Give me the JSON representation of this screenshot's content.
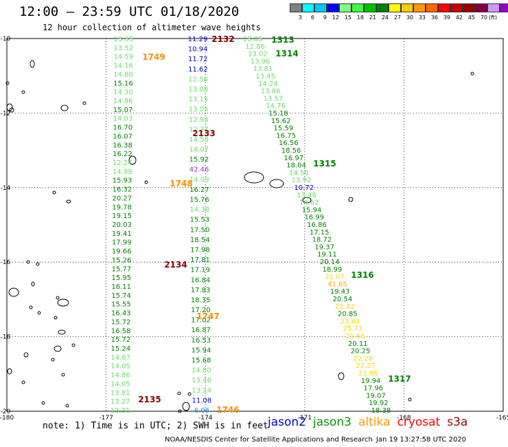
{
  "header": {
    "title": "12:00 – 23:59 UTC 01/18/2020",
    "subtitle": "12 hour collection of altimeter wave heights"
  },
  "legend": {
    "colors": [
      "#808080",
      "#00ffff",
      "#00c8ff",
      "#0000ff",
      "#80ff80",
      "#40ff40",
      "#00c000",
      "#008000",
      "#ffff00",
      "#ffcc00",
      "#ff9900",
      "#ff6600",
      "#ff0000",
      "#cc0000",
      "#990000",
      "#800040",
      "#cc99ff",
      "#9900cc",
      "#000000"
    ],
    "labels": [
      "3",
      "6",
      "9",
      "12",
      "15",
      "18",
      "21",
      "24",
      "27",
      "30",
      "33",
      "36",
      "39",
      "42",
      "45",
      "70",
      "(ft)"
    ]
  },
  "axes": {
    "lon_labels": [
      "-180",
      "-177",
      "-174",
      "-171",
      "-168",
      "-165"
    ],
    "lat_labels": [
      "-10",
      "-12",
      "-14",
      "-16",
      "-18",
      "-20"
    ]
  },
  "passes": [
    {
      "label": "2132",
      "color": "#8b0000"
    },
    {
      "label": "1313",
      "color": "#008000"
    },
    {
      "label": "1314",
      "color": "#008000"
    },
    {
      "label": "1749",
      "color": "#ff8c00"
    },
    {
      "label": "2133",
      "color": "#8b0000"
    },
    {
      "label": "1315",
      "color": "#008000"
    },
    {
      "label": "1748",
      "color": "#ff8c00"
    },
    {
      "label": "2134",
      "color": "#8b0000"
    },
    {
      "label": "1316",
      "color": "#008000"
    },
    {
      "label": "1747",
      "color": "#ff8c00"
    },
    {
      "label": "1317",
      "color": "#008000"
    },
    {
      "label": "2135",
      "color": "#8b0000"
    },
    {
      "label": "1746",
      "color": "#ff8c00"
    }
  ],
  "tracks": {
    "left": [
      "13.65",
      "13.52",
      "14.59",
      "14.16",
      "14.80",
      "15.16",
      "14.30",
      "14.86",
      "15.07",
      "14.03",
      "16.70",
      "16.07",
      "16.38",
      "16.22",
      "12.24",
      "14.99",
      "15.93",
      "16.32",
      "20.27",
      "19.78",
      "19.15",
      "20.03",
      "19.41",
      "17.99",
      "19.66",
      "15.26",
      "15.77",
      "15.95",
      "16.11",
      "15.74",
      "15.55",
      "16.43",
      "15.72",
      "16.58",
      "15.72",
      "15.24",
      "14.87",
      "14.05",
      "14.86",
      "14.05",
      "13.81",
      "13.27",
      "12.31"
    ],
    "mid": [
      "11.29",
      "10.94",
      "11.72",
      "11.62",
      "12.56",
      "13.08",
      "13.15",
      "13.05",
      "12.94",
      "12.37",
      "14.58",
      "14.07",
      "15.92",
      "42.46",
      "14.09",
      "16.27",
      "15.76",
      "14.38",
      "15.53",
      "17.50",
      "18.54",
      "17.98",
      "17.81",
      "17.19",
      "16.84",
      "17.83",
      "18.35",
      "17.20",
      "17.02",
      "16.87",
      "16.53",
      "15.94",
      "15.68",
      "14.80",
      "13.46",
      "13.24",
      "11.08",
      "6.06"
    ],
    "right": [
      "13.05",
      "12.86",
      "13.02",
      "13.96",
      "13.81",
      "13.45",
      "14.24",
      "13.86",
      "13.57",
      "14.76",
      "15.18",
      "15.62",
      "15.59",
      "16.75",
      "16.56",
      "18.56",
      "16.97",
      "18.04",
      "14.50",
      "13.92",
      "10.72",
      "13.48",
      "14.62",
      "15.94",
      "16.99",
      "16.86",
      "17.15",
      "18.72",
      "19.37",
      "19.11",
      "20.14",
      "18.99",
      "21.07",
      "41.65",
      "19.43",
      "20.54",
      "21.82",
      "20.85",
      "23.64",
      "25.73",
      "21.66",
      "20.11",
      "20.25",
      "22.28",
      "22.27",
      "21.96",
      "19.94",
      "17.96",
      "19.07",
      "19.92",
      "18.38"
    ]
  },
  "note": "note: 1) Time is in UTC; 2) SWH is in feet",
  "satellites": [
    {
      "name": "jason2",
      "color": "#0000cc"
    },
    {
      "name": "jason3",
      "color": "#009900"
    },
    {
      "name": "altika",
      "color": "#ff9900"
    },
    {
      "name": "cryosat",
      "color": "#ff0000"
    },
    {
      "name": "s3a",
      "color": "#990000"
    }
  ],
  "credit": "NOAA/NESDIS Center for Satellite Applications and Research",
  "timestamp": "Jan 19 13:27:58 UTC 2020"
}
